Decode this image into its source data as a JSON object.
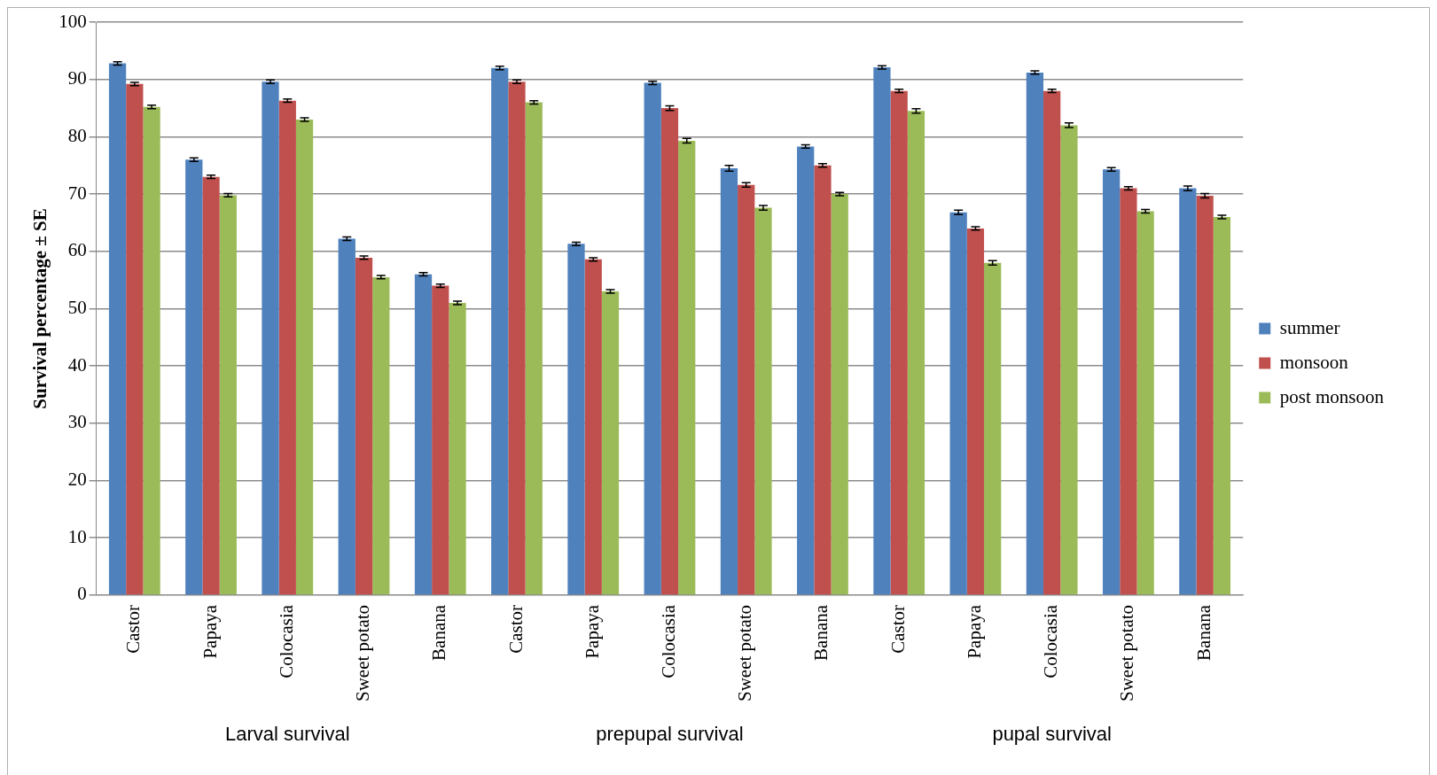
{
  "chart_data": {
    "type": "bar",
    "categories": [
      "Castor",
      "Papaya",
      "Colocasia",
      "Sweet potato",
      "Banana",
      "Castor",
      "Papaya",
      "Colocasia",
      "Sweet potato",
      "Banana",
      "Castor",
      "Papaya",
      "Colocasia",
      "Sweet potato",
      "Banana"
    ],
    "ylabel": "Survival percentage ± SE",
    "series": [
      {
        "name": "summer",
        "color": "#4f81bd",
        "values": [
          92.8,
          76,
          89.6,
          62.2,
          56,
          92,
          61.3,
          89.4,
          74.5,
          78.3,
          92.1,
          66.8,
          91.2,
          74.3,
          71
        ],
        "errors": [
          0.3,
          0.3,
          0.3,
          0.3,
          0.3,
          0.3,
          0.3,
          0.3,
          0.5,
          0.3,
          0.3,
          0.4,
          0.3,
          0.3,
          0.4
        ]
      },
      {
        "name": "monsoon",
        "color": "#c0504d",
        "values": [
          89.2,
          73,
          86.3,
          58.9,
          54,
          89.6,
          58.6,
          85,
          71.6,
          75,
          88,
          64,
          88,
          71,
          69.7
        ],
        "errors": [
          0.3,
          0.3,
          0.3,
          0.3,
          0.3,
          0.3,
          0.3,
          0.4,
          0.4,
          0.3,
          0.3,
          0.3,
          0.3,
          0.3,
          0.4
        ]
      },
      {
        "name": "post monsoon",
        "color": "#9bbb59",
        "values": [
          85.2,
          69.8,
          83,
          55.5,
          51,
          86,
          53,
          79.3,
          67.6,
          70,
          84.5,
          58,
          82,
          67,
          66
        ],
        "errors": [
          0.3,
          0.3,
          0.3,
          0.3,
          0.3,
          0.3,
          0.3,
          0.4,
          0.4,
          0.3,
          0.4,
          0.4,
          0.4,
          0.3,
          0.3
        ]
      }
    ],
    "ylim": [
      0,
      100
    ],
    "yticks": [
      0,
      10,
      20,
      30,
      40,
      50,
      60,
      70,
      80,
      90,
      100
    ],
    "grid": "y",
    "legend": "right",
    "annotations": [
      "Larval survival",
      "prepupal survival",
      "pupal survival"
    ]
  }
}
